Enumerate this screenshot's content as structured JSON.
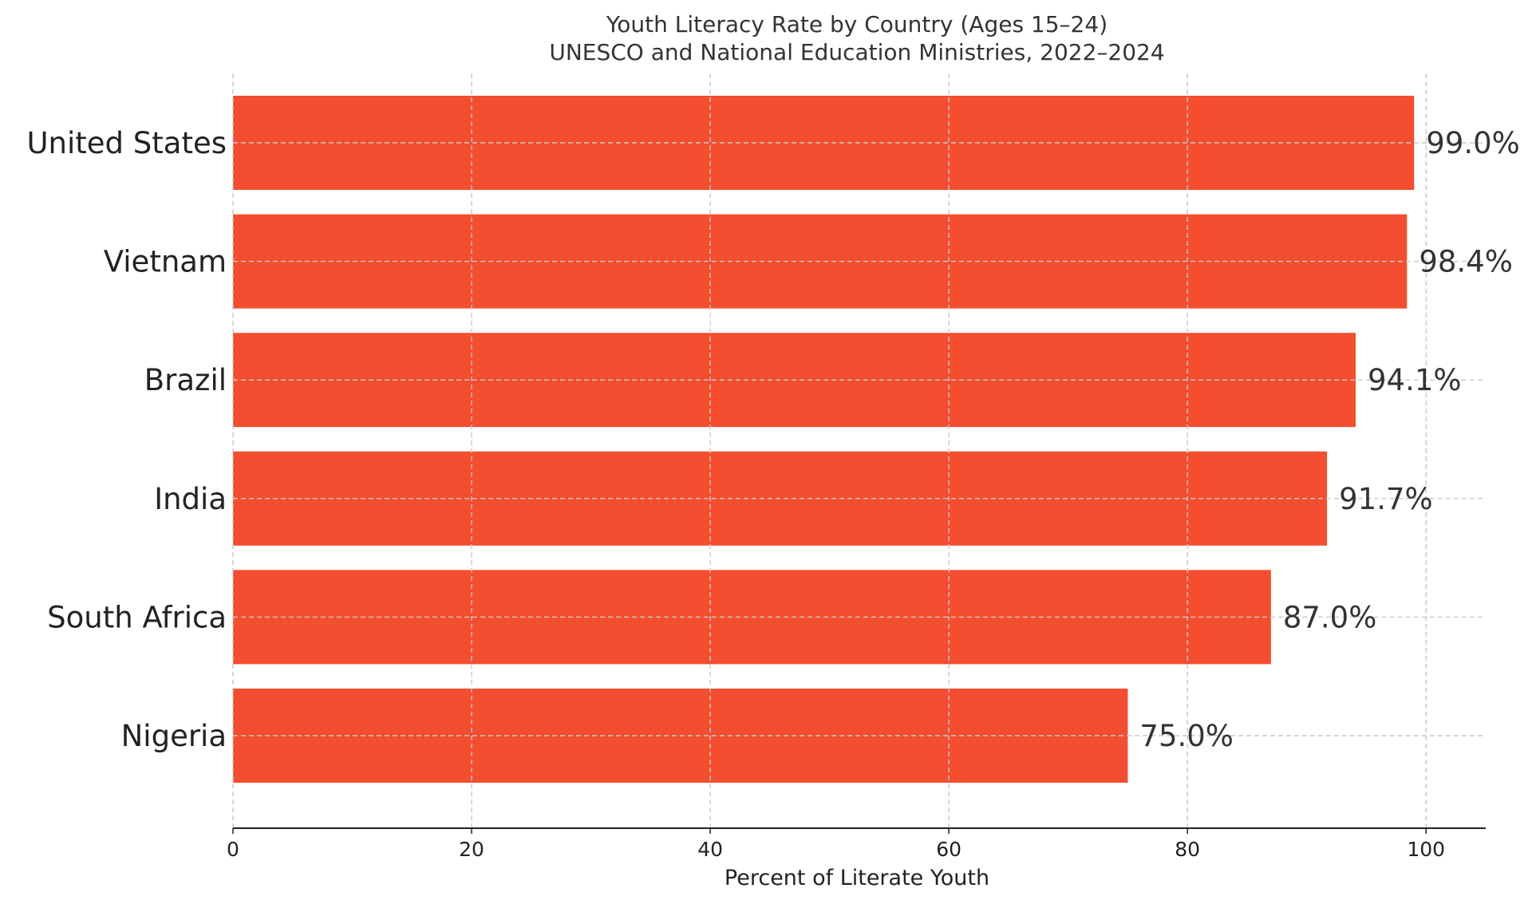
{
  "chart_data": {
    "type": "bar",
    "orientation": "horizontal",
    "title": "Youth Literacy Rate by Country (Ages 15–24)",
    "subtitle": "UNESCO and National Education Ministries, 2022–2024",
    "xlabel": "Percent of Literate Youth",
    "ylabel": "",
    "xlim": [
      0,
      105
    ],
    "xticks": [
      0,
      20,
      40,
      60,
      80,
      100
    ],
    "categories": [
      "United States",
      "Vietnam",
      "Brazil",
      "India",
      "South Africa",
      "Nigeria"
    ],
    "values": [
      99.0,
      98.4,
      94.1,
      91.7,
      87.0,
      75.0
    ],
    "value_labels": [
      "99.0%",
      "98.4%",
      "94.1%",
      "91.7%",
      "87.0%",
      "75.0%"
    ],
    "grid": true,
    "bar_color": "#f24e2f",
    "text_color": "#333333",
    "grid_color": "#c8c8c8"
  }
}
